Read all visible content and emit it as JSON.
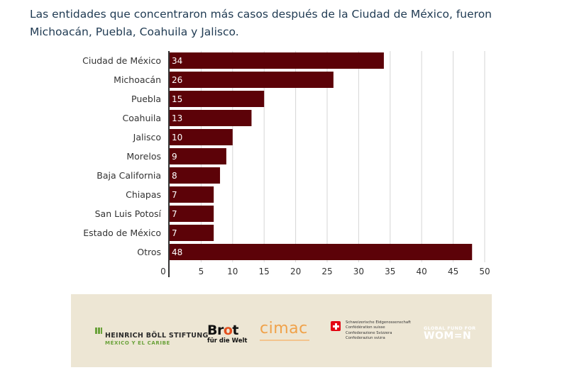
{
  "subtitle": "Las entidades que concentraron más casos después de la Ciudad de México, fueron Michoacán, Puebla, Coahuila y Jalisco.",
  "chart_data": {
    "type": "bar",
    "orientation": "horizontal",
    "categories": [
      "Ciudad de México",
      "Michoacán",
      "Puebla",
      "Coahuila",
      "Jalisco",
      "Morelos",
      "Baja California",
      "Chiapas",
      "San Luis Potosí",
      "Estado de México",
      "Otros"
    ],
    "values": [
      34,
      26,
      15,
      13,
      10,
      9,
      8,
      7,
      7,
      7,
      48
    ],
    "xlim": [
      0,
      50
    ],
    "xticks": [
      0,
      5,
      10,
      15,
      20,
      25,
      30,
      35,
      40,
      45,
      50
    ],
    "grid": true,
    "bar_color": "#5c0208",
    "title": "",
    "xlabel": "",
    "ylabel": ""
  },
  "footer": {
    "heinrich_boll_name": "HEINRICH BÖLL STIFTUNG",
    "heinrich_boll_sub": "MÉXICO Y EL CARIBE",
    "brot_main_pre": "Br",
    "brot_main_o": "o",
    "brot_main_post": "t",
    "brot_sub": "für die Welt",
    "cimac": "cimac",
    "swiss_lines": [
      "Schweizerische Eidgenossenschaft",
      "Confédération suisse",
      "Confederazione Svizzera",
      "Confederaziun svizra"
    ],
    "gfw_top": "GLOBAL FUND FOR",
    "gfw_main": "WOM=N"
  }
}
